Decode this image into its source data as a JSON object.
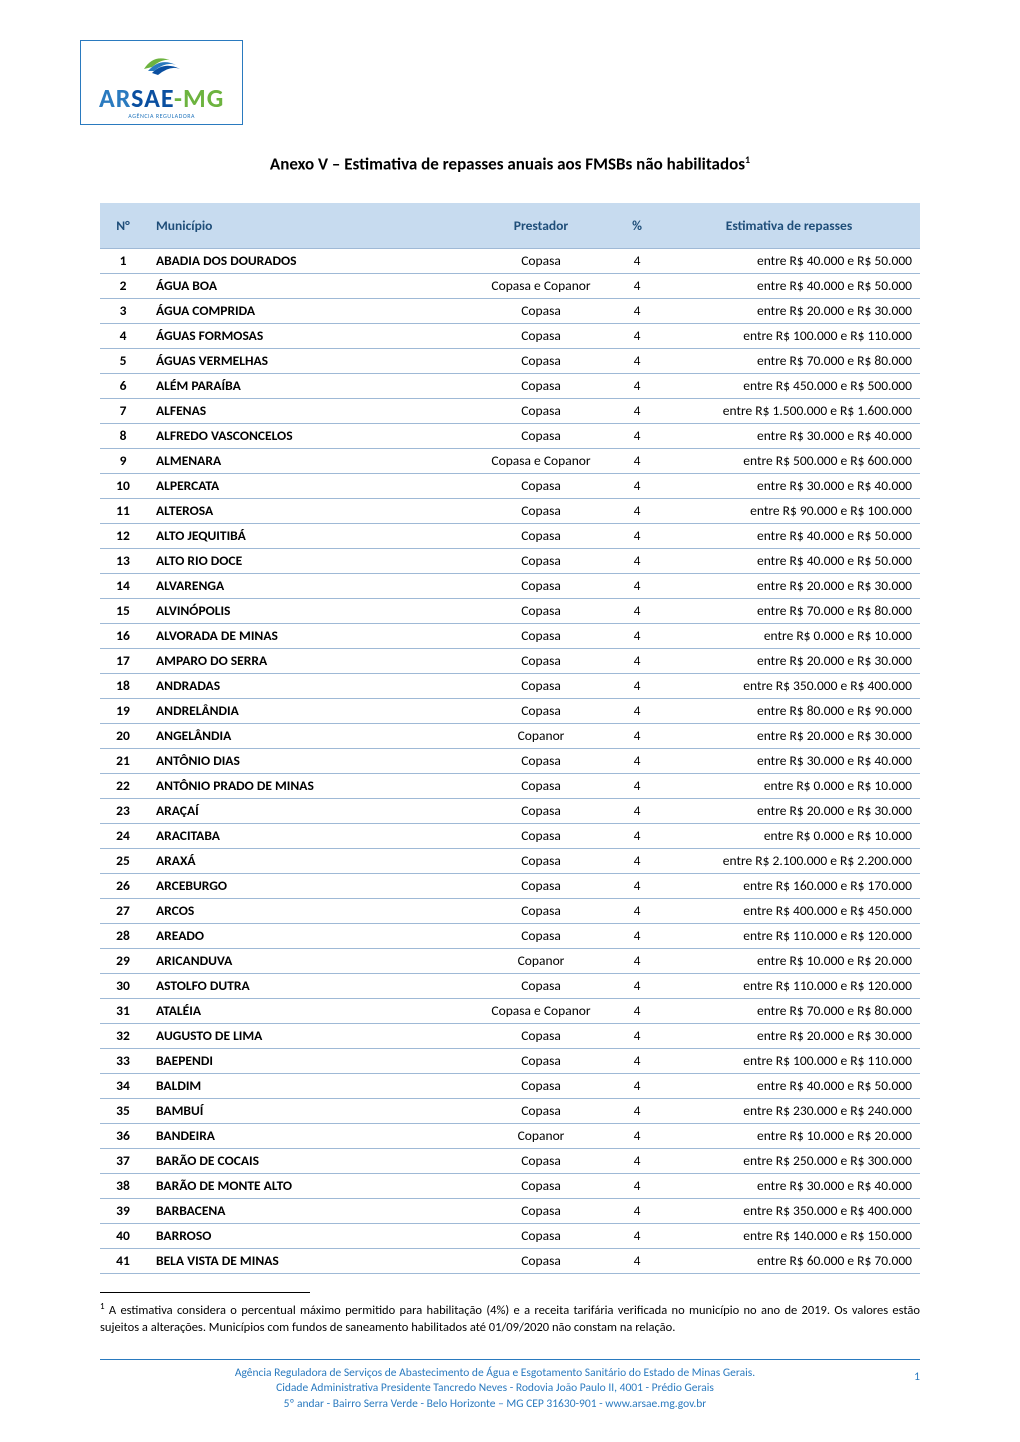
{
  "logo": {
    "text_ar": "AR",
    "text_sae": "SAE",
    "text_dash": "-",
    "text_mg": "MG",
    "subtitle": "AGÊNCIA REGULADORA",
    "swoosh_colors": [
      "#6db33f",
      "#2a7abf",
      "#0a4fa0"
    ]
  },
  "title": "Anexo V – Estimativa de repasses anuais aos FMSBs não habilitados",
  "title_sup": "1",
  "table": {
    "headers": {
      "n": "N°",
      "municipio": "Município",
      "prestador": "Prestador",
      "pct": "%",
      "estimativa": "Estimativa de repasses"
    },
    "header_bg": "#c7dbef",
    "header_color": "#1f4e79",
    "border_color": "#9fb9d6",
    "rows": [
      {
        "n": "1",
        "mun": "ABADIA DOS DOURADOS",
        "prest": "Copasa",
        "pct": "4",
        "est": "entre R$ 40.000 e R$ 50.000"
      },
      {
        "n": "2",
        "mun": "ÁGUA BOA",
        "prest": "Copasa e Copanor",
        "pct": "4",
        "est": "entre R$ 40.000 e R$ 50.000"
      },
      {
        "n": "3",
        "mun": "ÁGUA COMPRIDA",
        "prest": "Copasa",
        "pct": "4",
        "est": "entre R$ 20.000 e R$ 30.000"
      },
      {
        "n": "4",
        "mun": "ÁGUAS FORMOSAS",
        "prest": "Copasa",
        "pct": "4",
        "est": "entre R$ 100.000 e R$ 110.000"
      },
      {
        "n": "5",
        "mun": "ÁGUAS VERMELHAS",
        "prest": "Copasa",
        "pct": "4",
        "est": "entre R$ 70.000 e R$ 80.000"
      },
      {
        "n": "6",
        "mun": "ALÉM PARAÍBA",
        "prest": "Copasa",
        "pct": "4",
        "est": "entre R$ 450.000 e R$ 500.000"
      },
      {
        "n": "7",
        "mun": "ALFENAS",
        "prest": "Copasa",
        "pct": "4",
        "est": "entre R$ 1.500.000 e R$ 1.600.000"
      },
      {
        "n": "8",
        "mun": "ALFREDO VASCONCELOS",
        "prest": "Copasa",
        "pct": "4",
        "est": "entre R$ 30.000 e R$ 40.000"
      },
      {
        "n": "9",
        "mun": "ALMENARA",
        "prest": "Copasa e Copanor",
        "pct": "4",
        "est": "entre R$ 500.000 e R$ 600.000"
      },
      {
        "n": "10",
        "mun": "ALPERCATA",
        "prest": "Copasa",
        "pct": "4",
        "est": "entre R$ 30.000 e R$ 40.000"
      },
      {
        "n": "11",
        "mun": "ALTEROSA",
        "prest": "Copasa",
        "pct": "4",
        "est": "entre R$ 90.000 e R$ 100.000"
      },
      {
        "n": "12",
        "mun": "ALTO JEQUITIBÁ",
        "prest": "Copasa",
        "pct": "4",
        "est": "entre R$ 40.000 e R$ 50.000"
      },
      {
        "n": "13",
        "mun": "ALTO RIO DOCE",
        "prest": "Copasa",
        "pct": "4",
        "est": "entre R$ 40.000 e R$ 50.000"
      },
      {
        "n": "14",
        "mun": "ALVARENGA",
        "prest": "Copasa",
        "pct": "4",
        "est": "entre R$ 20.000 e R$ 30.000"
      },
      {
        "n": "15",
        "mun": "ALVINÓPOLIS",
        "prest": "Copasa",
        "pct": "4",
        "est": "entre R$ 70.000 e R$ 80.000"
      },
      {
        "n": "16",
        "mun": "ALVORADA DE MINAS",
        "prest": "Copasa",
        "pct": "4",
        "est": "entre R$ 0.000 e R$ 10.000"
      },
      {
        "n": "17",
        "mun": "AMPARO DO SERRA",
        "prest": "Copasa",
        "pct": "4",
        "est": "entre R$ 20.000 e R$ 30.000"
      },
      {
        "n": "18",
        "mun": "ANDRADAS",
        "prest": "Copasa",
        "pct": "4",
        "est": "entre R$ 350.000 e R$ 400.000"
      },
      {
        "n": "19",
        "mun": "ANDRELÂNDIA",
        "prest": "Copasa",
        "pct": "4",
        "est": "entre R$ 80.000 e R$ 90.000"
      },
      {
        "n": "20",
        "mun": "ANGELÂNDIA",
        "prest": "Copanor",
        "pct": "4",
        "est": "entre R$ 20.000 e R$ 30.000"
      },
      {
        "n": "21",
        "mun": "ANTÔNIO DIAS",
        "prest": "Copasa",
        "pct": "4",
        "est": "entre R$ 30.000 e R$ 40.000"
      },
      {
        "n": "22",
        "mun": "ANTÔNIO PRADO DE MINAS",
        "prest": "Copasa",
        "pct": "4",
        "est": "entre R$ 0.000 e R$ 10.000"
      },
      {
        "n": "23",
        "mun": "ARAÇAÍ",
        "prest": "Copasa",
        "pct": "4",
        "est": "entre R$ 20.000 e R$ 30.000"
      },
      {
        "n": "24",
        "mun": "ARACITABA",
        "prest": "Copasa",
        "pct": "4",
        "est": "entre R$ 0.000 e R$ 10.000"
      },
      {
        "n": "25",
        "mun": "ARAXÁ",
        "prest": "Copasa",
        "pct": "4",
        "est": "entre R$ 2.100.000 e R$ 2.200.000"
      },
      {
        "n": "26",
        "mun": "ARCEBURGO",
        "prest": "Copasa",
        "pct": "4",
        "est": "entre R$ 160.000 e R$ 170.000"
      },
      {
        "n": "27",
        "mun": "ARCOS",
        "prest": "Copasa",
        "pct": "4",
        "est": "entre R$ 400.000 e R$ 450.000"
      },
      {
        "n": "28",
        "mun": "AREADO",
        "prest": "Copasa",
        "pct": "4",
        "est": "entre R$ 110.000 e R$ 120.000"
      },
      {
        "n": "29",
        "mun": "ARICANDUVA",
        "prest": "Copanor",
        "pct": "4",
        "est": "entre R$ 10.000 e R$ 20.000"
      },
      {
        "n": "30",
        "mun": "ASTOLFO DUTRA",
        "prest": "Copasa",
        "pct": "4",
        "est": "entre R$ 110.000 e R$ 120.000"
      },
      {
        "n": "31",
        "mun": "ATALÉIA",
        "prest": "Copasa e Copanor",
        "pct": "4",
        "est": "entre R$ 70.000 e R$ 80.000"
      },
      {
        "n": "32",
        "mun": "AUGUSTO DE LIMA",
        "prest": "Copasa",
        "pct": "4",
        "est": "entre R$ 20.000 e R$ 30.000"
      },
      {
        "n": "33",
        "mun": "BAEPENDI",
        "prest": "Copasa",
        "pct": "4",
        "est": "entre R$ 100.000 e R$ 110.000"
      },
      {
        "n": "34",
        "mun": "BALDIM",
        "prest": "Copasa",
        "pct": "4",
        "est": "entre R$ 40.000 e R$ 50.000"
      },
      {
        "n": "35",
        "mun": "BAMBUÍ",
        "prest": "Copasa",
        "pct": "4",
        "est": "entre R$ 230.000 e R$ 240.000"
      },
      {
        "n": "36",
        "mun": "BANDEIRA",
        "prest": "Copanor",
        "pct": "4",
        "est": "entre R$ 10.000 e R$ 20.000"
      },
      {
        "n": "37",
        "mun": "BARÃO DE COCAIS",
        "prest": "Copasa",
        "pct": "4",
        "est": "entre R$ 250.000 e R$ 300.000"
      },
      {
        "n": "38",
        "mun": "BARÃO DE MONTE ALTO",
        "prest": "Copasa",
        "pct": "4",
        "est": "entre R$ 30.000 e R$ 40.000"
      },
      {
        "n": "39",
        "mun": "BARBACENA",
        "prest": "Copasa",
        "pct": "4",
        "est": "entre R$ 350.000 e R$ 400.000"
      },
      {
        "n": "40",
        "mun": "BARROSO",
        "prest": "Copasa",
        "pct": "4",
        "est": "entre R$ 140.000 e R$ 150.000"
      },
      {
        "n": "41",
        "mun": "BELA VISTA DE MINAS",
        "prest": "Copasa",
        "pct": "4",
        "est": "entre R$ 60.000 e R$ 70.000"
      }
    ]
  },
  "footnote": {
    "ref": "1",
    "text": "A estimativa considera o percentual máximo permitido para habilitação (4%) e a receita tarifária verificada no município no ano de 2019. Os valores estão sujeitos a alterações. Municípios com fundos de saneamento habilitados até 01/09/2020 não constam na relação."
  },
  "footer": {
    "line1": "Agência Reguladora de Serviços de Abastecimento de Água e Esgotamento Sanitário do Estado de Minas Gerais.",
    "line2": "Cidade Administrativa Presidente Tancredo Neves - Rodovia João Paulo II, 4001 - Prédio Gerais",
    "line3": "5º andar -  Bairro Serra Verde - Belo Horizonte – MG CEP 31630-901 - www.arsae.mg.gov.br",
    "page_number": "1",
    "color": "#2a7abf"
  }
}
